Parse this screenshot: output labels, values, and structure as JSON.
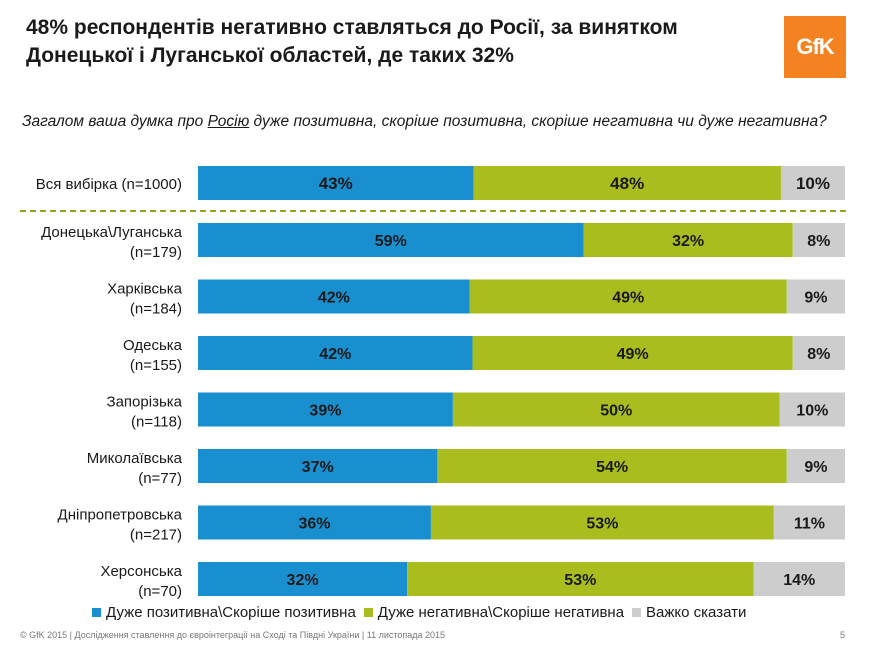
{
  "title": "48% респондентів негативно ставляться до Росії, за винятком Донецької і Луганської областей, де таких 32%",
  "logo_text": "GfK",
  "question": {
    "before": "Загалом ваша думка про ",
    "underlined": "Росію",
    "after": " дуже позитивна, скоріше позитивна, скоріше негативна чи дуже негативна?"
  },
  "colors": {
    "positive": "#1a8fd0",
    "negative": "#a9be1e",
    "hard_to_say": "#cdcdcd",
    "separator": "#8aa61c",
    "logo": "#f58220"
  },
  "chart_data": {
    "type": "bar",
    "orientation": "horizontal",
    "stacked": true,
    "categories": [
      [
        "Вся вибірка (n=1000)"
      ],
      [
        "Донецька\\Луганська",
        "(n=179)"
      ],
      [
        "Харківська",
        "(n=184)"
      ],
      [
        "Одеська",
        "(n=155)"
      ],
      [
        "Запорізька",
        "(n=118)"
      ],
      [
        "Миколаївська",
        "(n=77)"
      ],
      [
        "Дніпропетровська",
        "(n=217)"
      ],
      [
        "Херсонська",
        "(n=70)"
      ]
    ],
    "series": [
      {
        "name": "Дуже позитивна\\Скоріше позитивна",
        "values": [
          43,
          59,
          42,
          42,
          39,
          37,
          36,
          32
        ],
        "labels": [
          "43%",
          "59%",
          "42%",
          "42%",
          "39%",
          "37%",
          "36%",
          "32%"
        ]
      },
      {
        "name": "Дуже негативна\\Скоріше негативна",
        "values": [
          48,
          32,
          49,
          49,
          50,
          54,
          53,
          53
        ],
        "labels": [
          "48%",
          "32%",
          "49%",
          "49%",
          "50%",
          "54%",
          "53%",
          "53%"
        ]
      },
      {
        "name": "Важко сказати",
        "values": [
          10,
          8,
          9,
          8,
          10,
          9,
          11,
          14
        ],
        "labels": [
          "10%",
          "8%",
          "9%",
          "8%",
          "10%",
          "9%",
          "11%",
          "14%"
        ]
      }
    ],
    "separator_after_first": true,
    "legend": "bottom"
  },
  "footer": "© GfK 2015 | Дослідження ставлення до євроінтеграції на Сході та Півдні України | 11 листопада 2015",
  "page_number": "5"
}
